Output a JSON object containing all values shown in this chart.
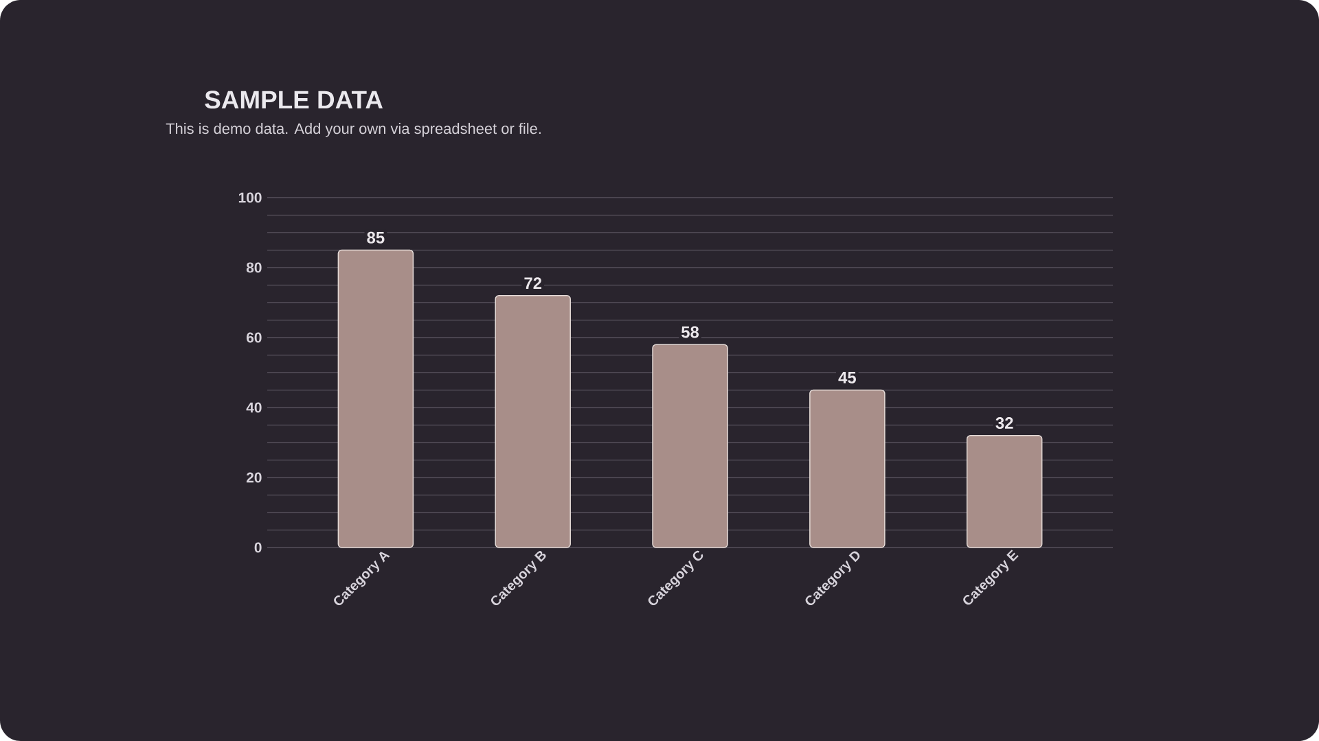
{
  "chart_data": {
    "type": "bar",
    "title": "SAMPLE DATA",
    "subtitle": "This is demo data. Add your own via spreadsheet or file.",
    "categories": [
      "Category A",
      "Category B",
      "Category C",
      "Category D",
      "Category E"
    ],
    "values": [
      85,
      72,
      58,
      45,
      32
    ],
    "color": "#a88e89",
    "ylim": [
      0,
      100
    ],
    "yticks": [
      0,
      {
        "value": 5,
        "label": null
      },
      {
        "value": 10,
        "label": null
      },
      {
        "value": 15,
        "label": null
      },
      20,
      {
        "value": 25,
        "label": null
      },
      {
        "value": 30,
        "label": null
      },
      {
        "value": 35,
        "label": null
      },
      40,
      {
        "value": 45,
        "label": null
      },
      {
        "value": 50,
        "label": null
      },
      {
        "value": 55,
        "label": null
      },
      60,
      {
        "value": 65,
        "label": null
      },
      {
        "value": 70,
        "label": null
      },
      {
        "value": 75,
        "label": null
      },
      80,
      {
        "value": 85,
        "label": null
      },
      {
        "value": 90,
        "label": null
      },
      {
        "value": 95,
        "label": null
      },
      100
    ],
    "grid": "y",
    "data_labels": true
  }
}
